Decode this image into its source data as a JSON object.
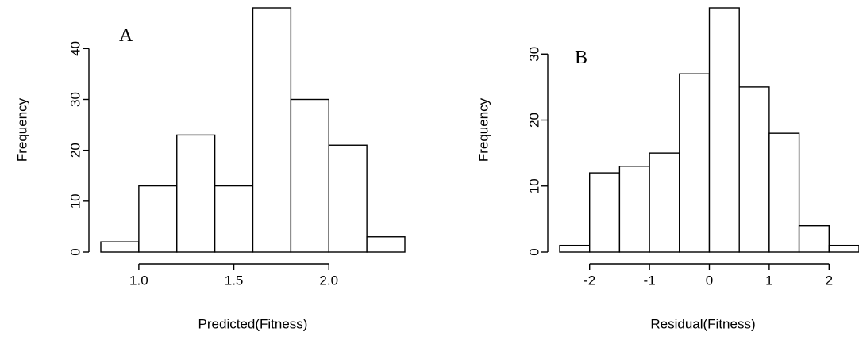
{
  "chart_data": [
    {
      "type": "bar",
      "panel_label": "A",
      "xlabel": "Predicted(Fitness)",
      "ylabel": "Frequency",
      "bin_edges": [
        0.8,
        1.0,
        1.2,
        1.4,
        1.6,
        1.8,
        2.0,
        2.2,
        2.4
      ],
      "values": [
        2,
        13,
        23,
        13,
        48,
        30,
        21,
        3
      ],
      "xticks": [
        1.0,
        1.5,
        2.0
      ],
      "xtick_labels": [
        "1.0",
        "1.5",
        "2.0"
      ],
      "yticks": [
        0,
        10,
        20,
        30,
        40
      ],
      "ytick_labels": [
        "0",
        "10",
        "20",
        "30",
        "40"
      ],
      "xlim": [
        0.8,
        2.4
      ],
      "ylim": [
        0,
        48
      ],
      "grid": false,
      "legend": "none"
    },
    {
      "type": "bar",
      "panel_label": "B",
      "xlabel": "Residual(Fitness)",
      "ylabel": "Frequency",
      "bin_edges": [
        -2.5,
        -2.0,
        -1.5,
        -1.0,
        -0.5,
        0.0,
        0.5,
        1.0,
        1.5,
        2.0,
        2.5
      ],
      "values": [
        1,
        12,
        13,
        15,
        27,
        37,
        25,
        18,
        4,
        1
      ],
      "xticks": [
        -2,
        -1,
        0,
        1,
        2
      ],
      "xtick_labels": [
        "-2",
        "-1",
        "0",
        "1",
        "2"
      ],
      "yticks": [
        0,
        10,
        20,
        30
      ],
      "ytick_labels": [
        "0",
        "10",
        "20",
        "30"
      ],
      "xlim": [
        -2.5,
        2.5
      ],
      "ylim": [
        0,
        37
      ],
      "grid": false,
      "legend": "none"
    }
  ]
}
